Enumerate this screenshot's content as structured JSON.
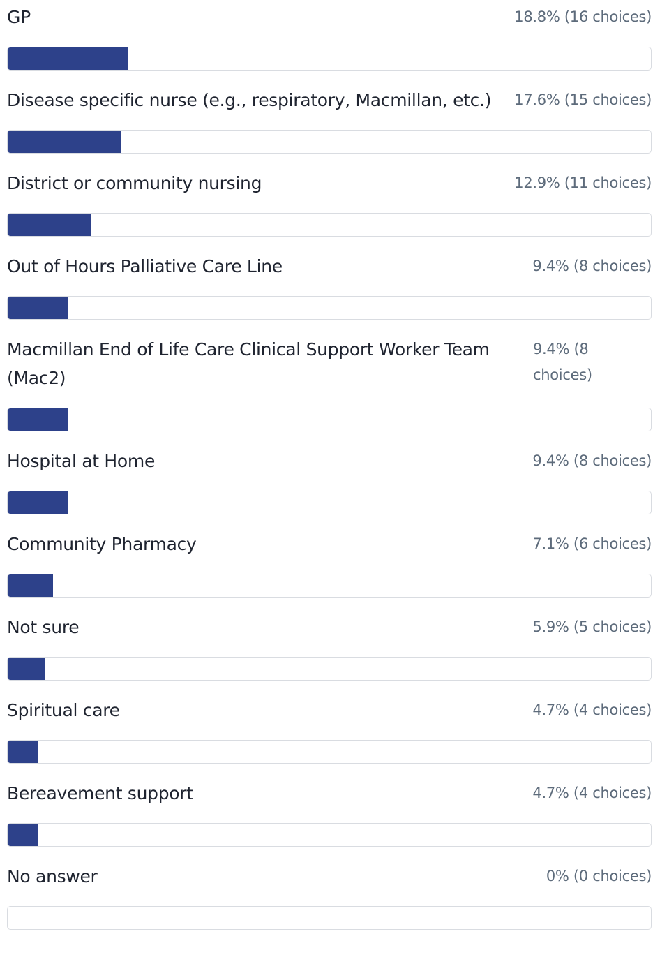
{
  "chart_data": {
    "type": "bar",
    "orientation": "horizontal",
    "color": "#2d418a",
    "xlim": [
      0,
      100
    ],
    "categories": [
      "GP",
      "Disease specific nurse (e.g., respiratory, Macmillan, etc.)",
      "District or community nursing",
      "Out of Hours Palliative Care Line",
      "Macmillan End of Life Care Clinical Support Worker Team (Mac2)",
      "Hospital at Home",
      "Community Pharmacy",
      "Not sure",
      "Spiritual care",
      "Bereavement support",
      "No answer"
    ],
    "values": [
      18.8,
      17.6,
      12.9,
      9.4,
      9.4,
      9.4,
      7.1,
      5.9,
      4.7,
      4.7,
      0
    ],
    "value_labels": [
      "18.8% (16 choices)",
      "17.6% (15 choices)",
      "12.9% (11 choices)",
      "9.4% (8 choices)",
      "9.4% (8 choices)",
      "9.4% (8 choices)",
      "7.1% (6 choices)",
      "5.9% (5 choices)",
      "4.7% (4 choices)",
      "4.7% (4 choices)",
      "0% (0 choices)"
    ]
  }
}
